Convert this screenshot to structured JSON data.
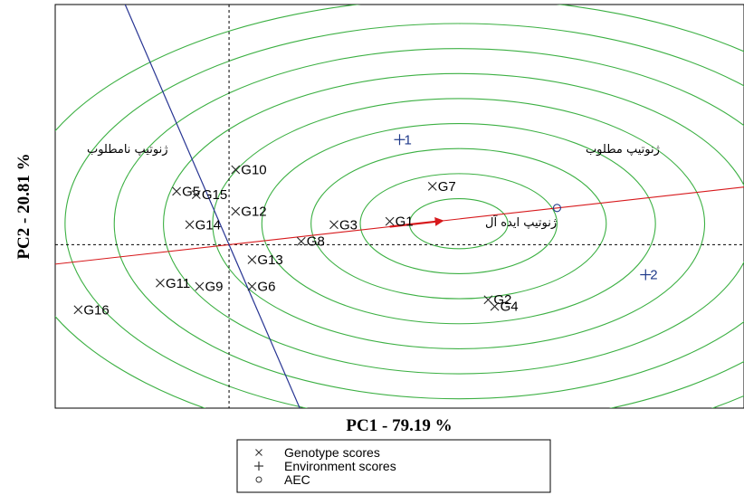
{
  "chart_data": {
    "type": "scatter",
    "xlabel": "PC1 - 79.19 %",
    "ylabel": "PC2 - 20.81 %",
    "xlim": [
      -5.3,
      15.7
    ],
    "ylim": [
      -9.8,
      14.4
    ],
    "grid": false,
    "legend_placement": "bottom-center",
    "colors": {
      "circles": "#3cb043",
      "aec_abscissa": "#d7191c",
      "aec_ordinate": "#283593",
      "environment": "#1f3a8a",
      "axis_reference": "#000000"
    },
    "series": [
      {
        "name": "Genotype scores",
        "marker": "x",
        "points": [
          {
            "label": "G1",
            "x": 4.9,
            "y": 1.4
          },
          {
            "label": "G2",
            "x": 7.9,
            "y": -3.3
          },
          {
            "label": "G3",
            "x": 3.2,
            "y": 1.2
          },
          {
            "label": "G4",
            "x": 8.1,
            "y": -3.7
          },
          {
            "label": "G5",
            "x": -1.6,
            "y": 3.2
          },
          {
            "label": "G6",
            "x": 0.7,
            "y": -2.5
          },
          {
            "label": "G7",
            "x": 6.2,
            "y": 3.5
          },
          {
            "label": "G8",
            "x": 2.2,
            "y": 0.2
          },
          {
            "label": "G9",
            "x": -0.9,
            "y": -2.5
          },
          {
            "label": "G10",
            "x": 0.2,
            "y": 4.5
          },
          {
            "label": "G11",
            "x": -2.1,
            "y": -2.3
          },
          {
            "label": "G12",
            "x": 0.2,
            "y": 2.0
          },
          {
            "label": "G13",
            "x": 0.7,
            "y": -0.9
          },
          {
            "label": "G14",
            "x": -1.2,
            "y": 1.2
          },
          {
            "label": "G15",
            "x": -1.0,
            "y": 3.0
          },
          {
            "label": "G16",
            "x": -4.6,
            "y": -3.9
          }
        ]
      },
      {
        "name": "Environment scores",
        "marker": "+",
        "points": [
          {
            "label": "1",
            "x": 5.2,
            "y": 6.3
          },
          {
            "label": "2",
            "x": 12.7,
            "y": -1.8
          }
        ]
      },
      {
        "name": "AEC",
        "marker": "o",
        "points": [
          {
            "label": "",
            "x": 10.0,
            "y": 2.2
          }
        ]
      }
    ],
    "ideal_center": {
      "x": 7.0,
      "y": 1.26
    },
    "circle_radii": [
      1.5,
      3.0,
      4.5,
      6.0,
      7.5,
      9.0,
      10.5,
      12.0,
      13.5
    ],
    "annotations": [
      {
        "text": "ژنوتیپ نامطلوب",
        "x": -3.1,
        "y": 5.5
      },
      {
        "text": "ژنوتیپ مطلوب",
        "x": 12.0,
        "y": 5.5
      },
      {
        "text": "ژنوتیپ ایده آل",
        "x": 8.9,
        "y": 1.1
      }
    ]
  }
}
